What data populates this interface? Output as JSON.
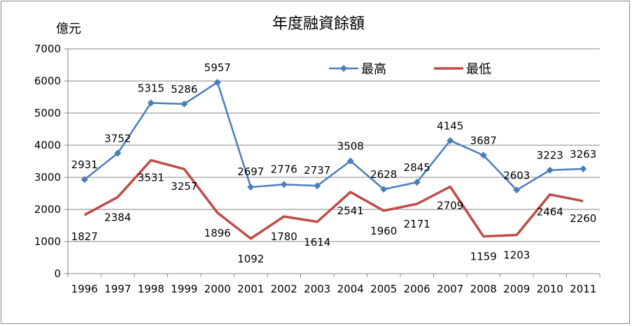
{
  "chart_data": {
    "type": "line",
    "title": "年度融資餘額",
    "unit_label": "億元",
    "categories": [
      "1996",
      "1997",
      "1998",
      "1999",
      "2000",
      "2001",
      "2002",
      "2003",
      "2004",
      "2005",
      "2006",
      "2007",
      "2008",
      "2009",
      "2010",
      "2011"
    ],
    "series": [
      {
        "name": "最高",
        "color": "#4a7ebb",
        "marker": "diamond",
        "values": [
          2931,
          3752,
          5315,
          5286,
          5957,
          2697,
          2776,
          2737,
          3508,
          2628,
          2845,
          4145,
          3687,
          2603,
          3223,
          3263
        ]
      },
      {
        "name": "最低",
        "color": "#be4b48",
        "marker": "none",
        "values": [
          1827,
          2384,
          3531,
          3257,
          1896,
          1092,
          1780,
          1614,
          2541,
          1960,
          2171,
          2709,
          1159,
          1203,
          2464,
          2260
        ]
      }
    ],
    "y_ticks": [
      "0",
      "1000",
      "2000",
      "3000",
      "4000",
      "5000",
      "6000",
      "7000"
    ],
    "ylim": [
      0,
      7000
    ],
    "grid": true,
    "legend_position": "top-right"
  }
}
